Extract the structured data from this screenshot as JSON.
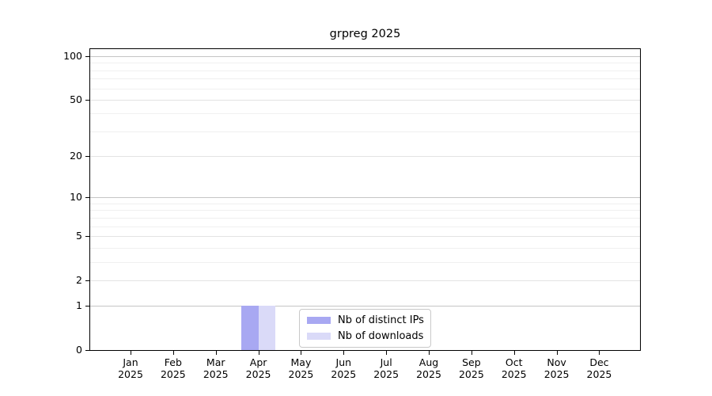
{
  "chart_data": {
    "type": "bar",
    "title": "grpreg 2025",
    "xlabel": "",
    "ylabel": "",
    "categories": [
      "Jan 2025",
      "Feb 2025",
      "Mar 2025",
      "Apr 2025",
      "May 2025",
      "Jun 2025",
      "Jul 2025",
      "Aug 2025",
      "Sep 2025",
      "Oct 2025",
      "Nov 2025",
      "Dec 2025"
    ],
    "x_tick_months": [
      "Jan",
      "Feb",
      "Mar",
      "Apr",
      "May",
      "Jun",
      "Jul",
      "Aug",
      "Sep",
      "Oct",
      "Nov",
      "Dec"
    ],
    "x_tick_year": "2025",
    "series": [
      {
        "name": "Nb of distinct IPs",
        "color": "#a8a8f2",
        "values": [
          0,
          0,
          0,
          1,
          0,
          0,
          0,
          0,
          0,
          0,
          0,
          0
        ]
      },
      {
        "name": "Nb of downloads",
        "color": "#dadaf8",
        "values": [
          0,
          0,
          0,
          1,
          0,
          0,
          0,
          0,
          0,
          0,
          0,
          0
        ]
      }
    ],
    "yscale": "log1p",
    "ylim": [
      0,
      112
    ],
    "y_major_ticks": [
      0,
      1,
      2,
      5,
      10,
      20,
      50,
      100
    ],
    "y_minor_ticks": [
      3,
      4,
      6,
      7,
      8,
      9,
      30,
      40,
      60,
      70,
      80,
      90
    ],
    "grid": "horizontal",
    "legend_position": "inside lower center"
  },
  "colors": {
    "decade_grid": "#c5c5c5",
    "major_grid": "#e3e3e3",
    "minor_grid": "#f0f0f0",
    "spine": "#000000",
    "legend_border": "#c9c9c9"
  }
}
